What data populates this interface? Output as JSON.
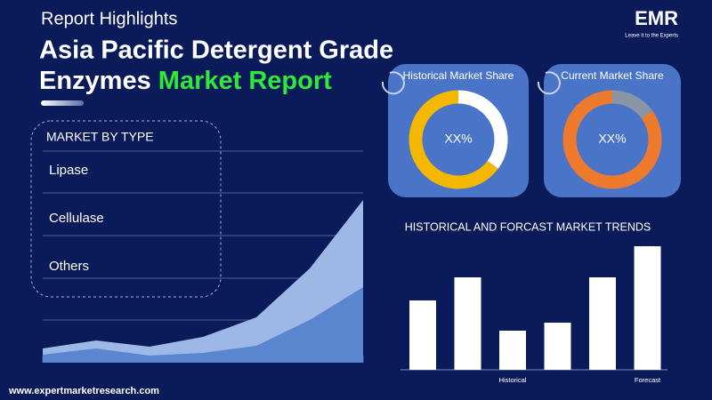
{
  "header": {
    "kicker": "Report Highlights",
    "title_line1": "Asia Pacific Detergent Grade",
    "title_line2_white": "Enzymes",
    "title_line2_green": "Market Report"
  },
  "logo": {
    "name": "EMR",
    "tagline": "Leave it to the Experts"
  },
  "segments": {
    "title": "MARKET BY TYPE",
    "items": [
      "Lipase",
      "Cellulase",
      "Others"
    ]
  },
  "chart_data": [
    {
      "type": "pie",
      "title": "Historical Market Share",
      "center_label": "XX%",
      "values": [
        35,
        65
      ],
      "colors": [
        "#ffffff",
        "#f5b800"
      ]
    },
    {
      "type": "pie",
      "title": "Current Market Share",
      "center_label": "XX%",
      "values": [
        15,
        85
      ],
      "colors": [
        "#8b95a8",
        "#ee7a2e"
      ]
    },
    {
      "type": "bar",
      "title": "HISTORICAL AND FORCAST MARKET TRENDS",
      "categories": [
        null,
        null,
        "Historical",
        null,
        null,
        "Forecast"
      ],
      "values": [
        78,
        104,
        44,
        53,
        104,
        139
      ],
      "color": "#ffffff"
    },
    {
      "type": "area",
      "series": [
        {
          "color": "#9db8e6",
          "values": [
            16,
            25,
            18,
            29,
            51,
            106,
            183
          ]
        },
        {
          "color": "#5a86cf",
          "values": [
            9,
            16,
            8,
            11,
            19,
            48,
            85
          ]
        }
      ]
    }
  ],
  "footer": {
    "url": "www.expertmarketresearch.com"
  }
}
